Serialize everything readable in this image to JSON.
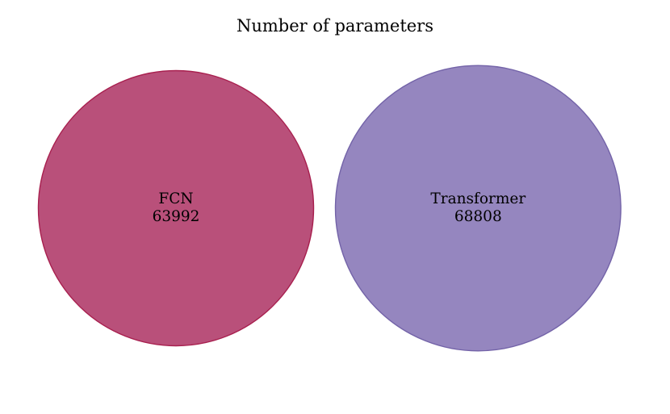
{
  "chart_data": {
    "type": "venn",
    "title": "Number of parameters",
    "sets": [
      {
        "name": "FCN",
        "value": 63992,
        "color": "#b03a6a",
        "edge_color": "#a8204f"
      },
      {
        "name": "Transformer",
        "value": 68808,
        "color": "#8877b7",
        "edge_color": "#7363a8"
      }
    ],
    "intersection": 0
  }
}
